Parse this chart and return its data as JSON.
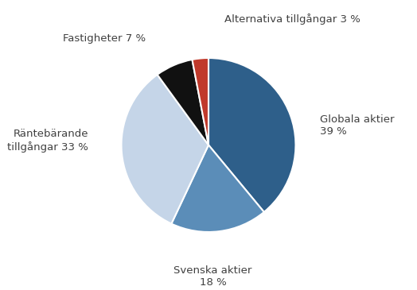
{
  "labels": [
    "Globala aktier\n39 %",
    "Svenska aktier\n18 %",
    "Räntebärande\ntillgångar 33 %",
    "Fastigheter 7 %",
    "Alternativa tillgångar 3 %"
  ],
  "values": [
    39,
    18,
    33,
    7,
    3
  ],
  "colors": [
    "#2e5f8a",
    "#5b8db8",
    "#c5d5e8",
    "#111111",
    "#c0392b"
  ],
  "startangle": 90,
  "background_color": "#ffffff",
  "figsize": [
    5.24,
    3.65
  ],
  "dpi": 100,
  "label_coords": [
    [
      1.28,
      0.22,
      "left",
      "center"
    ],
    [
      0.05,
      -1.38,
      "center",
      "top"
    ],
    [
      -1.38,
      0.05,
      "right",
      "center"
    ],
    [
      -0.72,
      1.22,
      "right",
      "center"
    ],
    [
      0.18,
      1.38,
      "left",
      "bottom"
    ]
  ],
  "font_size": 9.5,
  "font_color": "#404040",
  "edge_color": "#ffffff",
  "edge_width": 1.5
}
